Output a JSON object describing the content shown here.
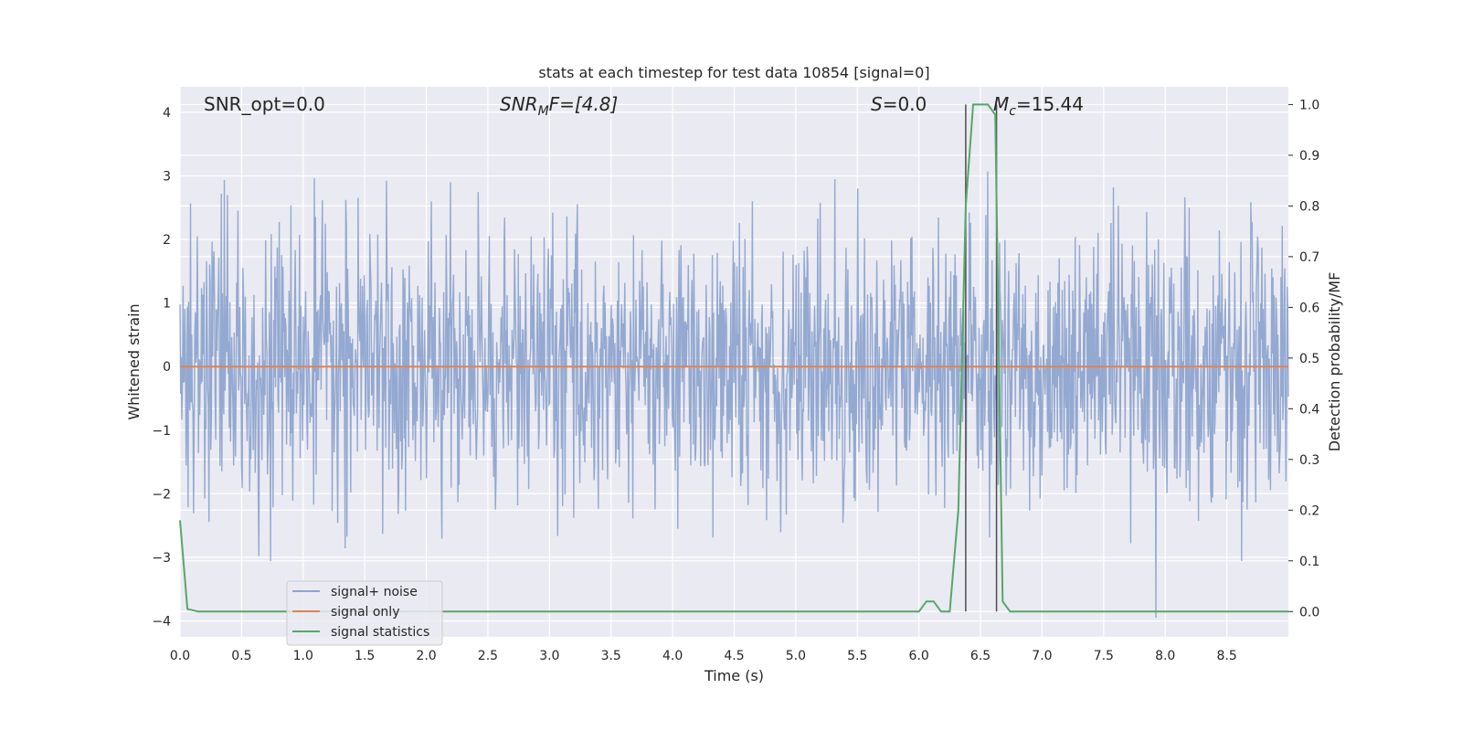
{
  "chart_data": {
    "type": "line",
    "title": "stats at each timestep for test data 10854 [signal=0]",
    "xlabel": "Time (s)",
    "ylabel": "Whitened strain",
    "ylabel_right": "Detection probability/MF",
    "xlim": [
      0.0,
      9.0
    ],
    "ylim": [
      -4.25,
      4.4
    ],
    "ylim_right": [
      -0.05,
      1.035
    ],
    "x_ticks": [
      "0.0",
      "0.5",
      "1.0",
      "1.5",
      "2.0",
      "2.5",
      "3.0",
      "3.5",
      "4.0",
      "4.5",
      "5.0",
      "5.5",
      "6.0",
      "6.5",
      "7.0",
      "7.5",
      "8.0",
      "8.5"
    ],
    "y_ticks": [
      "−4",
      "−3",
      "−2",
      "−1",
      "0",
      "1",
      "2",
      "3",
      "4"
    ],
    "y_ticks_right": [
      "0.0",
      "0.1",
      "0.2",
      "0.3",
      "0.4",
      "0.5",
      "0.6",
      "0.7",
      "0.8",
      "0.9",
      "1.0"
    ],
    "grid": true,
    "legend_placement": "lower-left",
    "annotations": {
      "snr_opt": "SNR_opt=0.0",
      "snr_mf_main": "SNR",
      "snr_mf_sub": "M",
      "snr_mf_rest": "F=[4.8]",
      "s_main": "S",
      "s_rest": "=0.0",
      "mc_main": "M",
      "mc_sub": "c",
      "mc_rest": "=15.44"
    },
    "vertical_lines_x": [
      6.38,
      6.63
    ],
    "series": [
      {
        "name": "signal+ noise",
        "color": "#8fa5cf",
        "description_of_data": "whitened noise strain, roughly Gaussian in [-4, 4]",
        "sample_count": 1800,
        "seed": 10854
      },
      {
        "name": "signal only",
        "color": "#dd8452",
        "x": [
          0.0,
          9.0
        ],
        "y": [
          0.0,
          0.0
        ]
      },
      {
        "name": "signal statistics",
        "color": "#55a868",
        "axis": "right",
        "x": [
          0.0,
          0.06,
          0.15,
          6.0,
          6.06,
          6.12,
          6.18,
          6.25,
          6.32,
          6.38,
          6.44,
          6.5,
          6.56,
          6.62,
          6.68,
          6.74,
          6.8,
          9.0
        ],
        "y": [
          0.18,
          0.005,
          0.0,
          0.0,
          0.02,
          0.02,
          0.0,
          0.0,
          0.2,
          0.8,
          1.0,
          1.0,
          1.0,
          0.98,
          0.02,
          0.0,
          0.0,
          0.0
        ]
      }
    ]
  }
}
